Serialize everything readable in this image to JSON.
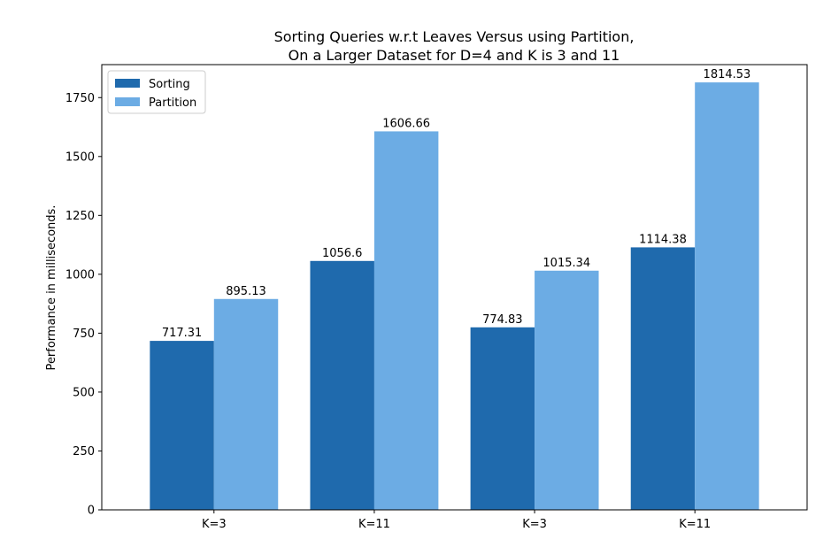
{
  "chart_data": {
    "type": "bar",
    "title_lines": [
      "Sorting Queries w.r.t Leaves Versus using Partition,",
      "On a Larger Dataset for D=4 and K is 3 and 11"
    ],
    "xlabel": "",
    "ylabel": "Performance in milliseconds.",
    "categories": [
      "K=3",
      "K=11",
      "K=3",
      "K=11"
    ],
    "series": [
      {
        "name": "Sorting",
        "color": "#1f6aad",
        "values": [
          717.31,
          1056.6,
          774.83,
          1114.38
        ]
      },
      {
        "name": "Partition",
        "color": "#6cace4",
        "values": [
          895.13,
          1606.66,
          1015.34,
          1814.53
        ]
      }
    ],
    "data_labels": [
      [
        "717.31",
        "1056.6",
        "774.83",
        "1114.38"
      ],
      [
        "895.13",
        "1606.66",
        "1015.34",
        "1814.53"
      ]
    ],
    "ylim": [
      0,
      1890
    ],
    "yticks": [
      0,
      250,
      500,
      750,
      1000,
      1250,
      1500,
      1750
    ],
    "grid": false,
    "legend_position": "top-left"
  }
}
